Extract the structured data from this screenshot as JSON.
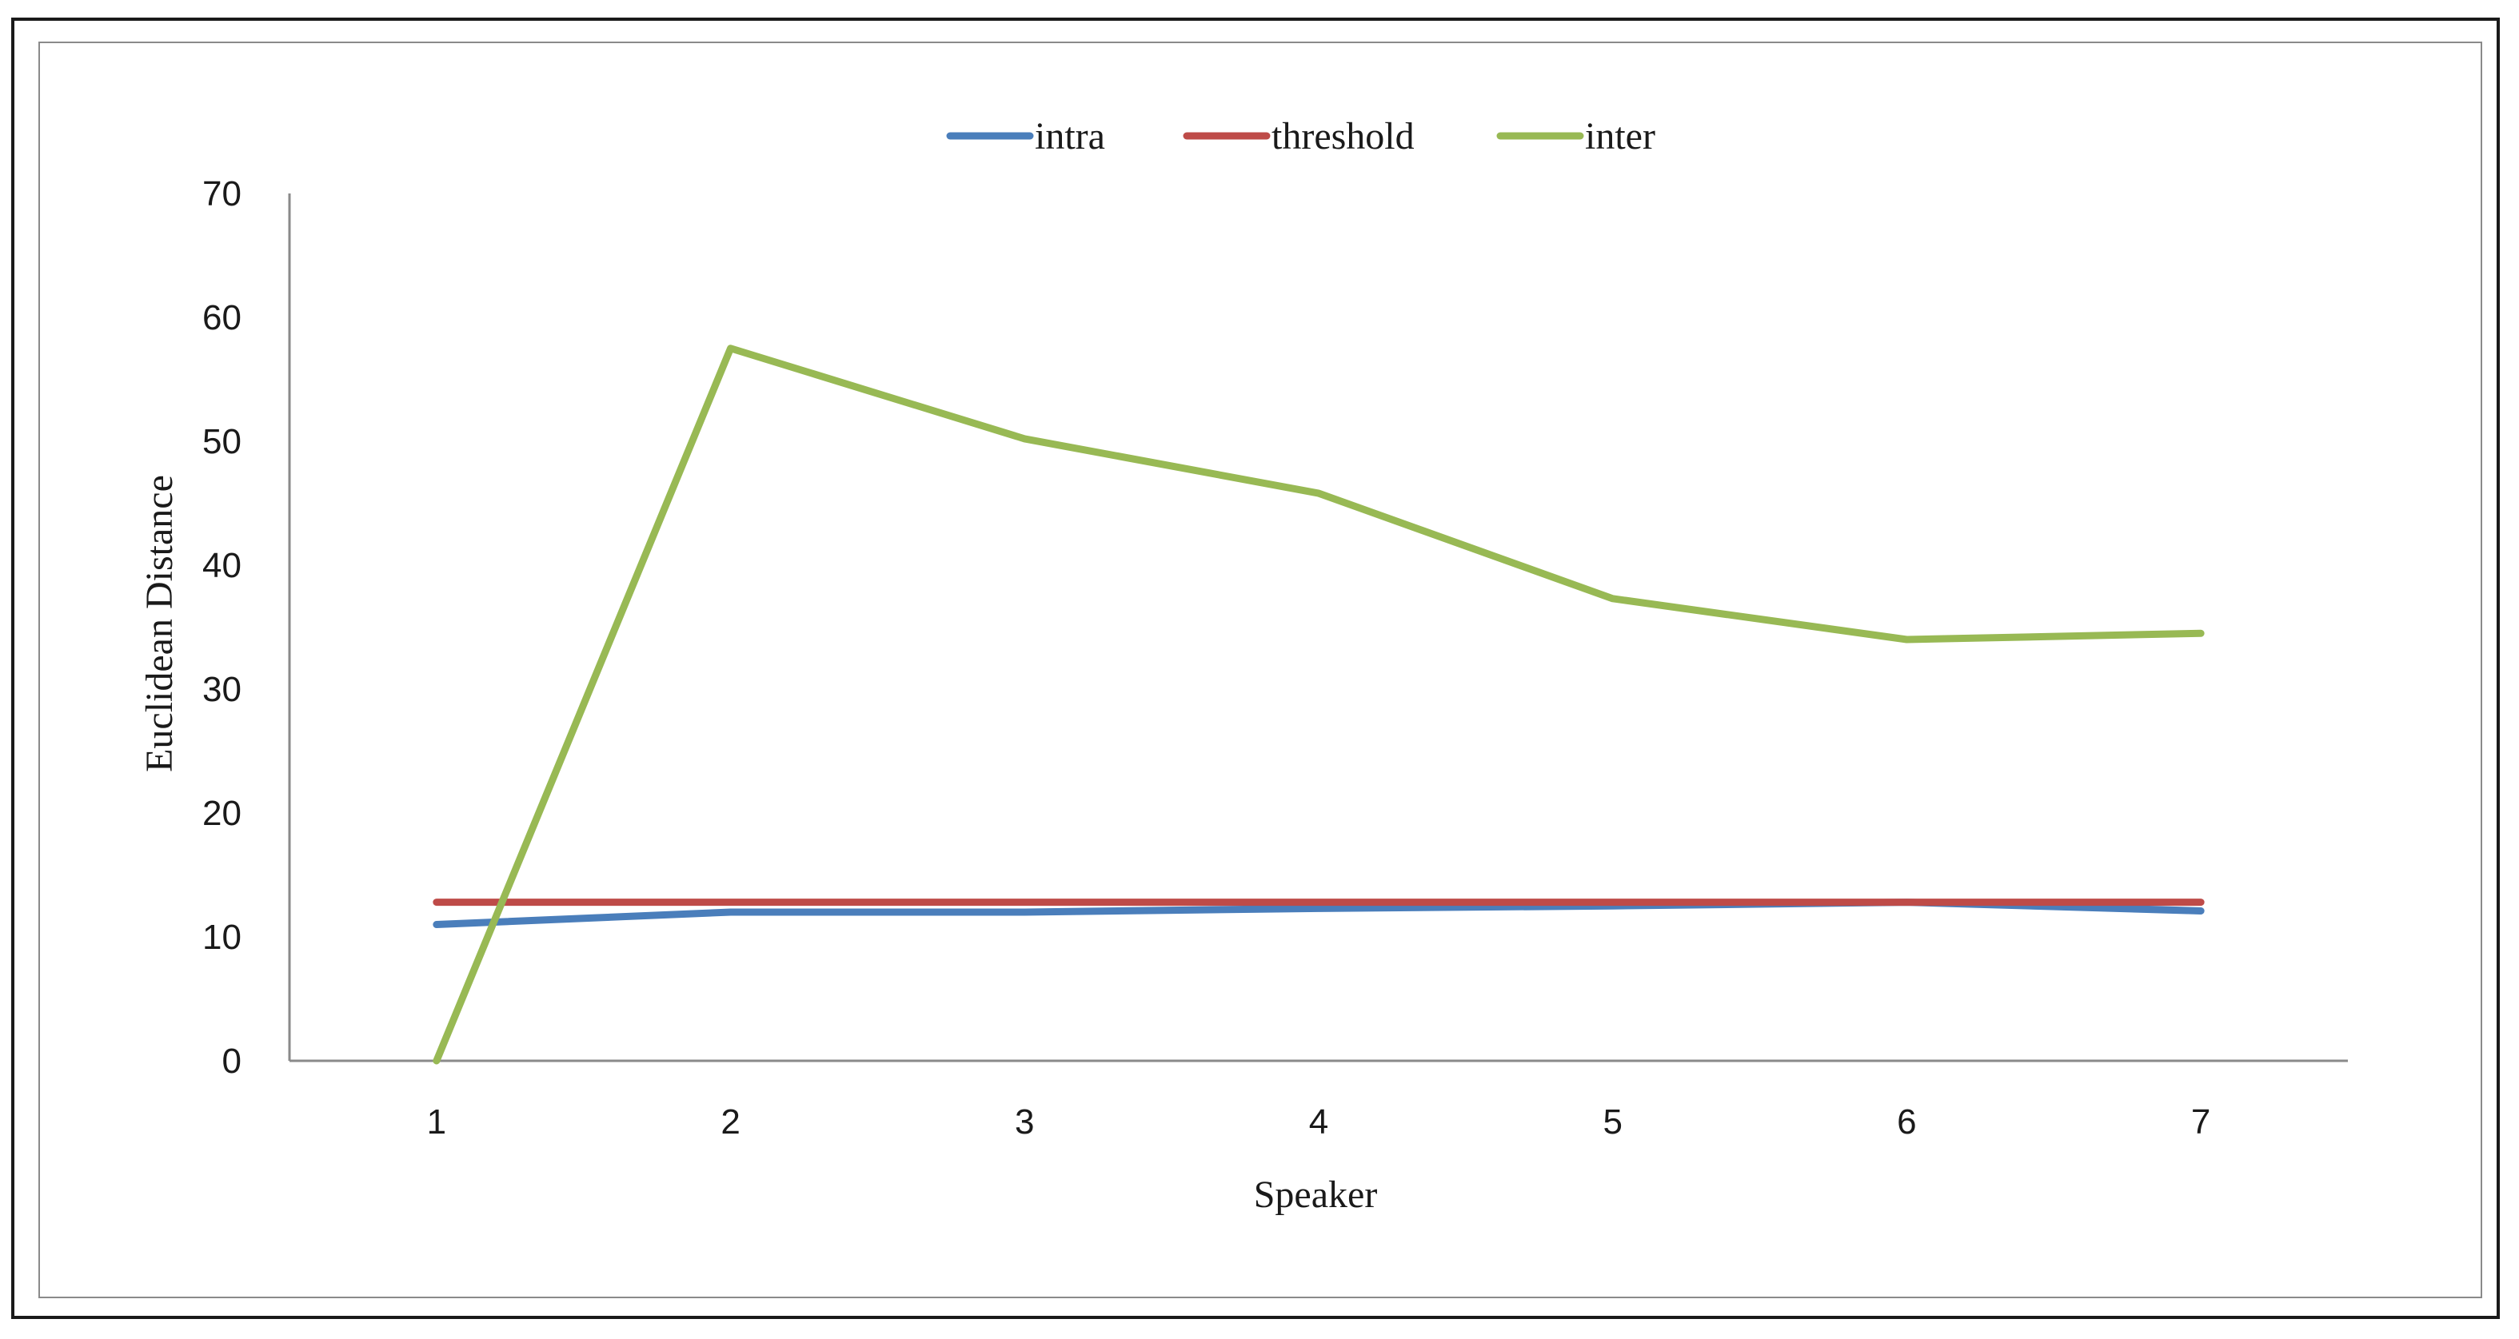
{
  "chart_data": {
    "type": "line",
    "title": "",
    "xlabel": "Speaker",
    "ylabel": "Euclidean Distance",
    "x": [
      1,
      2,
      3,
      4,
      5,
      6,
      7
    ],
    "xlim": [
      0.5,
      7.5
    ],
    "ylim": [
      0,
      70
    ],
    "yticks": [
      0,
      10,
      20,
      30,
      40,
      50,
      60,
      70
    ],
    "grid": false,
    "legend_position": "top-center",
    "series": [
      {
        "name": "intra",
        "color": "#4a7ebb",
        "values": [
          11,
          12,
          12,
          12.3,
          12.5,
          12.8,
          12.1
        ]
      },
      {
        "name": "threshold",
        "color": "#be4b48",
        "values": [
          12.8,
          12.8,
          12.8,
          12.8,
          12.8,
          12.8,
          12.8
        ]
      },
      {
        "name": "inter",
        "color": "#98b954",
        "values": [
          0,
          57.5,
          50.2,
          45.8,
          37.3,
          34,
          34.5
        ]
      }
    ]
  }
}
